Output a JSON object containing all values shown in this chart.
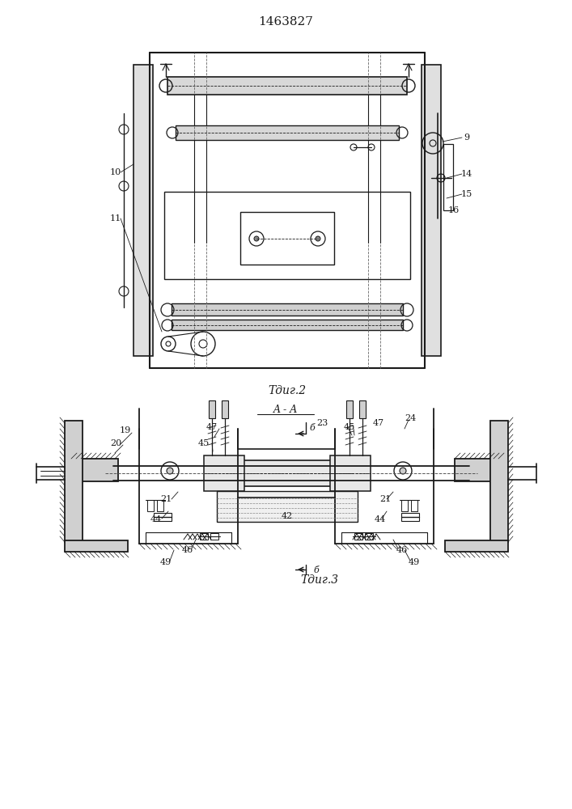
{
  "title": "1463827",
  "bg_color": "#ffffff",
  "line_color": "#1a1a1a",
  "fig1_caption": "Τдиг.2",
  "fig2_caption": "Τдиг.3"
}
